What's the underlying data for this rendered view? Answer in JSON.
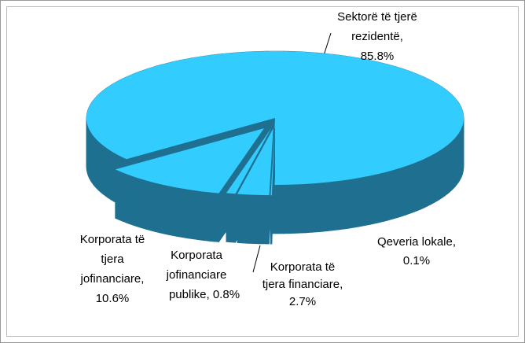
{
  "chart_data": {
    "type": "pie3d",
    "values": [
      85.8,
      0.1,
      2.7,
      0.8,
      10.6
    ],
    "value_labels": [
      [
        "Sektorë të tjerë",
        "rezidentë,",
        "85.8%"
      ],
      [
        "Qeveria lokale,",
        "0.1%"
      ],
      [
        "Korporata të",
        "tjera financiare,",
        "2.7%"
      ],
      [
        "Korporata",
        "jofinanciare",
        "publike, 0.8%"
      ],
      [
        "Korporata të",
        "tjera",
        "jofinanciare,",
        "10.6%"
      ]
    ],
    "top_color": "#33ccff",
    "side_color": "#1f7090"
  }
}
